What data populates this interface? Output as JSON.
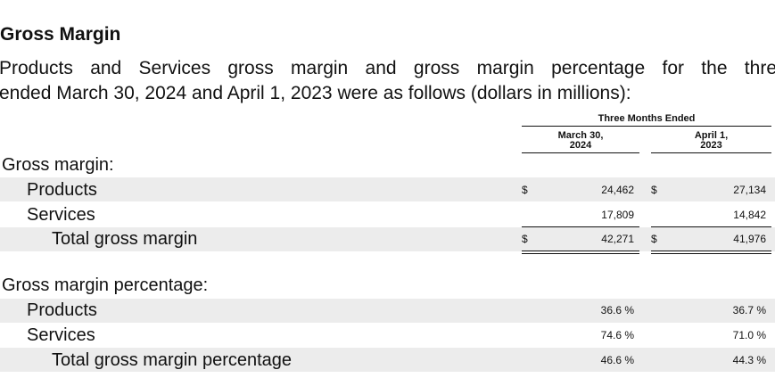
{
  "title": "Gross Margin",
  "intro": {
    "lines": [
      "Products and Services gross margin and gross margin percentage for the thre",
      "ended March 30, 2024 and April 1, 2023 were as follows (dollars in millions):"
    ]
  },
  "table": {
    "period_header": "Three Months Ended",
    "columns": [
      [
        "March 30,",
        "2024"
      ],
      [
        "April 1,",
        "2023"
      ]
    ],
    "sections": [
      {
        "label": "Gross margin:",
        "rows": [
          {
            "label": "Products",
            "cells": [
              {
                "currency": "$",
                "value": "24,462"
              },
              {
                "currency": "$",
                "value": "27,134"
              }
            ]
          },
          {
            "label": "Services",
            "cells": [
              {
                "value": "17,809"
              },
              {
                "value": "14,842"
              }
            ]
          },
          {
            "label": "Total gross margin",
            "cells": [
              {
                "currency": "$",
                "value": "42,271"
              },
              {
                "currency": "$",
                "value": "41,976"
              }
            ]
          }
        ]
      },
      {
        "label": "Gross margin percentage:",
        "rows": [
          {
            "label": "Products",
            "cells": [
              {
                "value": "36.6 %"
              },
              {
                "value": "36.7 %"
              }
            ]
          },
          {
            "label": "Services",
            "cells": [
              {
                "value": "74.6 %"
              },
              {
                "value": "71.0 %"
              }
            ]
          },
          {
            "label": "Total gross margin percentage",
            "cells": [
              {
                "value": "46.6 %"
              },
              {
                "value": "44.3 %"
              }
            ]
          }
        ]
      }
    ]
  }
}
